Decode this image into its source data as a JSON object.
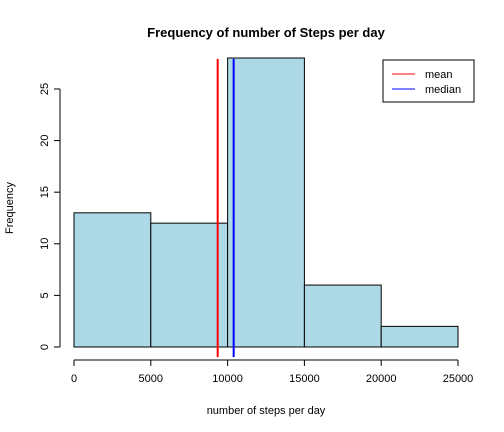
{
  "chart_data": {
    "type": "bar",
    "title": "Frequency of number of Steps per day",
    "xlabel": "number of steps per day",
    "ylabel": "Frequency",
    "bins": [
      {
        "from": 0,
        "to": 5000,
        "count": 13
      },
      {
        "from": 5000,
        "to": 10000,
        "count": 12
      },
      {
        "from": 10000,
        "to": 15000,
        "count": 28
      },
      {
        "from": 15000,
        "to": 20000,
        "count": 6
      },
      {
        "from": 20000,
        "to": 25000,
        "count": 2
      }
    ],
    "xlim": [
      0,
      25000
    ],
    "ylim": [
      0,
      28
    ],
    "xticks": [
      0,
      5000,
      10000,
      15000,
      20000,
      25000
    ],
    "yticks": [
      0,
      5,
      10,
      15,
      20,
      25
    ],
    "bar_color": "#ADD8E6",
    "lines": [
      {
        "name": "mean",
        "x": 9354,
        "color": "#FF0000"
      },
      {
        "name": "median",
        "x": 10395,
        "color": "#0000FF"
      }
    ],
    "legend_position": "top-right",
    "grid": false
  }
}
